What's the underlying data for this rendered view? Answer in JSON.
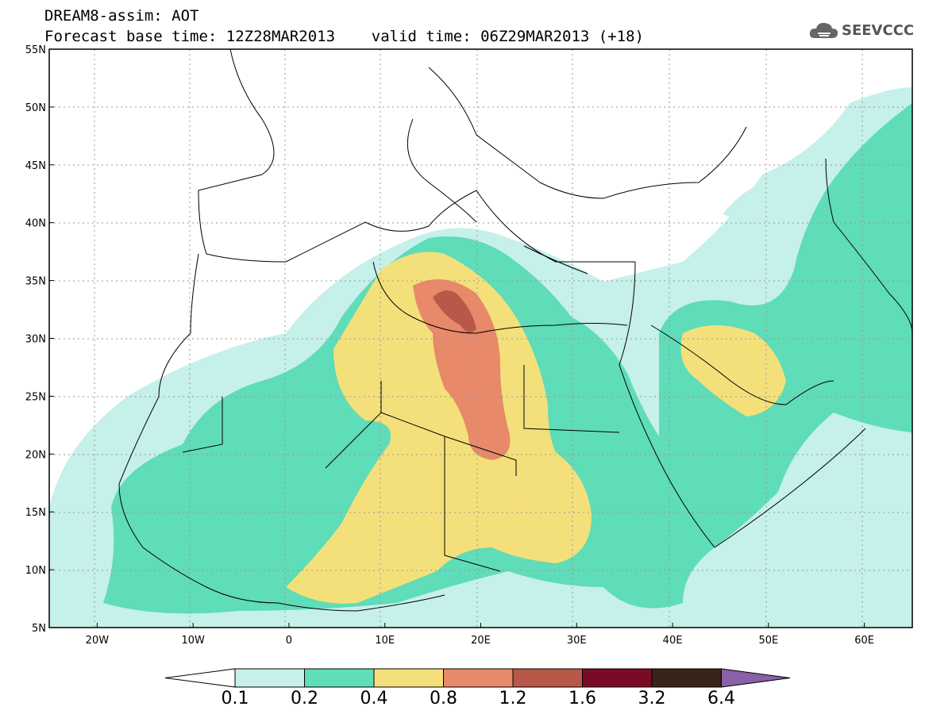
{
  "header": {
    "title_line1": "DREAM8-assim: AOT",
    "title_line2": "Forecast base time: 12Z28MAR2013    valid time: 06Z29MAR2013 (+18)",
    "logo_text": "SEEVCCC"
  },
  "map": {
    "lat_labels": [
      "55N",
      "50N",
      "45N",
      "40N",
      "35N",
      "30N",
      "25N",
      "20N",
      "15N",
      "10N",
      "5N"
    ],
    "lon_labels": [
      "20W",
      "10W",
      "0",
      "10E",
      "20E",
      "30E",
      "40E",
      "50E",
      "60E"
    ],
    "extent": {
      "lon": [
        -25,
        65
      ],
      "lat": [
        5,
        55
      ]
    }
  },
  "colorbar": {
    "labels": [
      "0.1",
      "0.2",
      "0.4",
      "0.8",
      "1.2",
      "1.6",
      "3.2",
      "6.4"
    ],
    "colors": [
      "#ffffff",
      "#c6f0ea",
      "#5fdcb8",
      "#f4e07a",
      "#e8896a",
      "#b85848",
      "#7a0a25",
      "#3a2418",
      "#8a60a8"
    ]
  }
}
